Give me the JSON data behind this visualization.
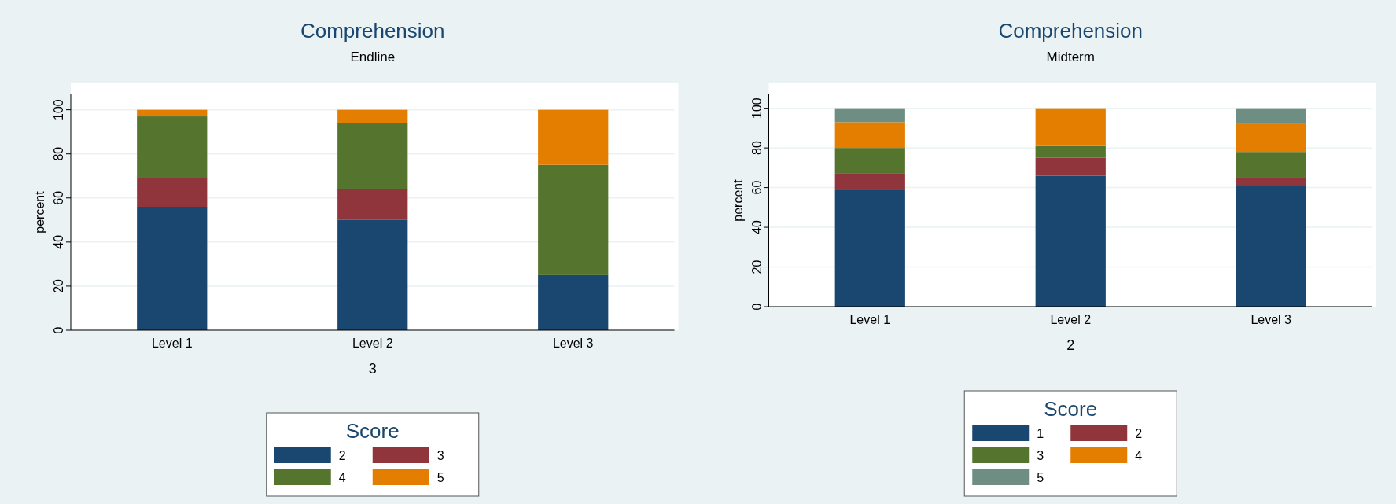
{
  "chart_data": [
    {
      "type": "bar",
      "stacked": true,
      "title": "Comprehension",
      "subtitle": "Endline",
      "xlabel": "3",
      "ylabel": "percent",
      "legend_title": "Score",
      "legend": "bottom",
      "grid": "y",
      "categories": [
        "Level 1",
        "Level 2",
        "Level 3"
      ],
      "ylim": [
        0,
        107
      ],
      "yticks": [
        0,
        20,
        40,
        60,
        80,
        100
      ],
      "series": [
        {
          "name": "2",
          "color": "#1a476f",
          "values": [
            56,
            50,
            25
          ]
        },
        {
          "name": "3",
          "color": "#90353b",
          "values": [
            13,
            14,
            0
          ]
        },
        {
          "name": "4",
          "color": "#55752f",
          "values": [
            28,
            30,
            50
          ]
        },
        {
          "name": "5",
          "color": "#e37e00",
          "values": [
            3,
            6,
            25
          ]
        }
      ]
    },
    {
      "type": "bar",
      "stacked": true,
      "title": "Comprehension",
      "subtitle": "Midterm",
      "xlabel": "2",
      "ylabel": "percent",
      "legend_title": "Score",
      "legend": "bottom",
      "grid": "y",
      "categories": [
        "Level 1",
        "Level 2",
        "Level 3"
      ],
      "ylim": [
        0,
        107
      ],
      "yticks": [
        0,
        20,
        40,
        60,
        80,
        100
      ],
      "series": [
        {
          "name": "1",
          "color": "#1a476f",
          "values": [
            59,
            66,
            61
          ]
        },
        {
          "name": "2",
          "color": "#90353b",
          "values": [
            8,
            9,
            4
          ]
        },
        {
          "name": "3",
          "color": "#55752f",
          "values": [
            13,
            6,
            13
          ]
        },
        {
          "name": "4",
          "color": "#e37e00",
          "values": [
            13,
            19,
            14
          ]
        },
        {
          "name": "5",
          "color": "#6e8e84",
          "values": [
            7,
            0,
            8
          ]
        }
      ]
    }
  ]
}
